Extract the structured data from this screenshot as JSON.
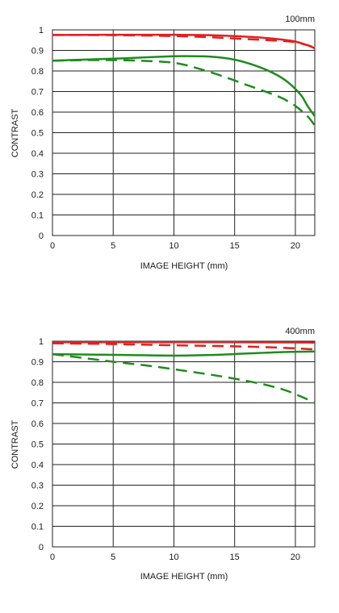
{
  "chart_data": [
    {
      "type": "line",
      "title": "100mm",
      "xlabel": "IMAGE HEIGHT (mm)",
      "ylabel": "CONTRAST",
      "xlim": [
        0,
        21.6
      ],
      "ylim": [
        0,
        1
      ],
      "grid": true,
      "x_ticks": [
        "0",
        "5",
        "10",
        "15",
        "20"
      ],
      "x_tick_values": [
        0,
        5,
        10,
        15,
        20
      ],
      "y_ticks": [
        "0",
        "0.1",
        "0.2",
        "0.3",
        "0.4",
        "0.5",
        "0.6",
        "0.7",
        "0.8",
        "0.9",
        "1"
      ],
      "y_tick_values": [
        0,
        0.1,
        0.2,
        0.3,
        0.4,
        0.5,
        0.6,
        0.7,
        0.8,
        0.9,
        1
      ],
      "series": [
        {
          "color": "#e02020",
          "dash": false,
          "x": [
            0,
            5,
            10,
            13,
            15,
            17,
            19,
            20,
            21,
            21.6
          ],
          "y": [
            0.975,
            0.976,
            0.976,
            0.974,
            0.97,
            0.963,
            0.952,
            0.943,
            0.925,
            0.91
          ]
        },
        {
          "color": "#e02020",
          "dash": true,
          "x": [
            0,
            5,
            10,
            13,
            15,
            17,
            19,
            20,
            21,
            21.6
          ],
          "y": [
            0.975,
            0.974,
            0.97,
            0.964,
            0.958,
            0.952,
            0.946,
            0.94,
            0.925,
            0.915
          ]
        },
        {
          "color": "#1e8c1e",
          "dash": false,
          "x": [
            0,
            3,
            6,
            9,
            10.5,
            13,
            15,
            17,
            18.5,
            19.5,
            20.5,
            21,
            21.6
          ],
          "y": [
            0.85,
            0.856,
            0.862,
            0.87,
            0.872,
            0.87,
            0.855,
            0.82,
            0.78,
            0.74,
            0.68,
            0.63,
            0.58
          ]
        },
        {
          "color": "#1e8c1e",
          "dash": true,
          "x": [
            0,
            3,
            6,
            9,
            10.5,
            12,
            14,
            16,
            18,
            19,
            20,
            21,
            21.6
          ],
          "y": [
            0.85,
            0.853,
            0.852,
            0.845,
            0.835,
            0.812,
            0.775,
            0.732,
            0.69,
            0.665,
            0.63,
            0.58,
            0.535
          ]
        }
      ]
    },
    {
      "type": "line",
      "title": "400mm",
      "xlabel": "IMAGE HEIGHT (mm)",
      "ylabel": "CONTRAST",
      "xlim": [
        0,
        21.6
      ],
      "ylim": [
        0,
        1
      ],
      "grid": true,
      "x_ticks": [
        "0",
        "5",
        "10",
        "15",
        "20"
      ],
      "x_tick_values": [
        0,
        5,
        10,
        15,
        20
      ],
      "y_ticks": [
        "0",
        "0.1",
        "0.2",
        "0.3",
        "0.4",
        "0.5",
        "0.6",
        "0.7",
        "0.8",
        "0.9",
        "1"
      ],
      "y_tick_values": [
        0,
        0.1,
        0.2,
        0.3,
        0.4,
        0.5,
        0.6,
        0.7,
        0.8,
        0.9,
        1
      ],
      "series": [
        {
          "color": "#e02020",
          "dash": false,
          "x": [
            0,
            5,
            10,
            15,
            20,
            21.6
          ],
          "y": [
            0.995,
            0.995,
            0.995,
            0.995,
            0.994,
            0.993
          ]
        },
        {
          "color": "#e02020",
          "dash": true,
          "x": [
            0,
            5,
            10,
            15,
            18,
            20,
            21.6
          ],
          "y": [
            0.99,
            0.986,
            0.98,
            0.975,
            0.97,
            0.965,
            0.96
          ]
        },
        {
          "color": "#1e8c1e",
          "dash": false,
          "x": [
            0,
            3,
            6,
            10,
            13,
            16,
            19,
            21.6
          ],
          "y": [
            0.937,
            0.935,
            0.933,
            0.93,
            0.933,
            0.94,
            0.947,
            0.95
          ]
        },
        {
          "color": "#1e8c1e",
          "dash": true,
          "x": [
            0,
            3,
            5,
            8,
            11,
            14,
            17,
            19,
            20.5,
            21.6
          ],
          "y": [
            0.937,
            0.915,
            0.9,
            0.88,
            0.855,
            0.828,
            0.795,
            0.765,
            0.73,
            0.7
          ]
        }
      ]
    }
  ]
}
